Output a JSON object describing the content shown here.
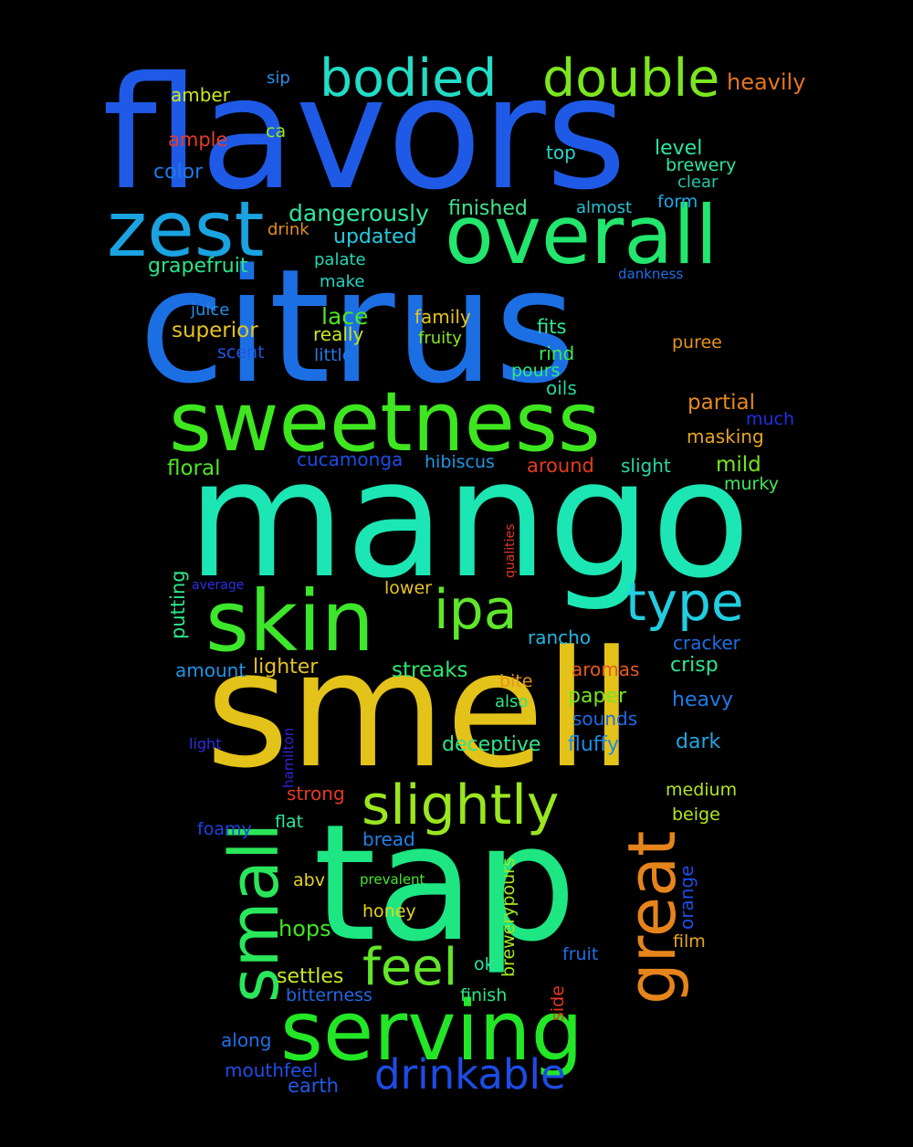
{
  "words": [
    {
      "text": "flavors",
      "color": "#1f5ae6"
    },
    {
      "text": "citrus",
      "color": "#1c6fe3"
    },
    {
      "text": "mango",
      "color": "#1ce6b3"
    },
    {
      "text": "smell",
      "color": "#e3c21a"
    },
    {
      "text": "tap",
      "color": "#1de682"
    },
    {
      "text": "sweetness",
      "color": "#3ee61f"
    },
    {
      "text": "serving",
      "color": "#23e626"
    },
    {
      "text": "skin",
      "color": "#3de62a"
    },
    {
      "text": "overall",
      "color": "#22e66d"
    },
    {
      "text": "zest",
      "color": "#1aa3e0"
    },
    {
      "text": "slightly",
      "color": "#9ae61f"
    },
    {
      "text": "small",
      "color": "#29e65a"
    },
    {
      "text": "great",
      "color": "#e6841c"
    },
    {
      "text": "bodied",
      "color": "#22dcc6"
    },
    {
      "text": "double",
      "color": "#7be61f"
    },
    {
      "text": "type",
      "color": "#22cde0"
    },
    {
      "text": "ipa",
      "color": "#5fe62a"
    },
    {
      "text": "feel",
      "color": "#62e62a"
    },
    {
      "text": "drinkable",
      "color": "#1d4ce6"
    },
    {
      "text": "heavily",
      "color": "#e6741f"
    },
    {
      "text": "dangerously",
      "color": "#2fe6a4"
    },
    {
      "text": "finished",
      "color": "#3ee68a"
    },
    {
      "text": "updated",
      "color": "#23cbe0"
    },
    {
      "text": "grapefruit",
      "color": "#28e688"
    },
    {
      "text": "amber",
      "color": "#cfe61f"
    },
    {
      "text": "sip",
      "color": "#2c8be6"
    },
    {
      "text": "ample",
      "color": "#e63b2c"
    },
    {
      "text": "ca",
      "color": "#9ae61f"
    },
    {
      "text": "color",
      "color": "#1f7ae6"
    },
    {
      "text": "top",
      "color": "#22d9d0"
    },
    {
      "text": "level",
      "color": "#28e6a4"
    },
    {
      "text": "brewery",
      "color": "#2fe6a0"
    },
    {
      "text": "clear",
      "color": "#23c9a7"
    },
    {
      "text": "form",
      "color": "#1fa8e6"
    },
    {
      "text": "almost",
      "color": "#22c2d6"
    },
    {
      "text": "drink",
      "color": "#e38f1c"
    },
    {
      "text": "palate",
      "color": "#22d8b8"
    },
    {
      "text": "dankness",
      "color": "#1f6fe6"
    },
    {
      "text": "make",
      "color": "#22d4c4"
    },
    {
      "text": "juice",
      "color": "#1f90e6"
    },
    {
      "text": "lace",
      "color": "#4ce622"
    },
    {
      "text": "family",
      "color": "#e6c31f"
    },
    {
      "text": "superior",
      "color": "#e6c31f"
    },
    {
      "text": "really",
      "color": "#c7e61f"
    },
    {
      "text": "fruity",
      "color": "#8ae61f"
    },
    {
      "text": "fits",
      "color": "#2ee68f"
    },
    {
      "text": "scent",
      "color": "#1f57e6"
    },
    {
      "text": "little",
      "color": "#1f7ae6"
    },
    {
      "text": "rind",
      "color": "#3ee64b"
    },
    {
      "text": "puree",
      "color": "#e6941f"
    },
    {
      "text": "pours",
      "color": "#2ee684"
    },
    {
      "text": "oils",
      "color": "#22d6a0"
    },
    {
      "text": "partial",
      "color": "#e6891f"
    },
    {
      "text": "much",
      "color": "#1f2fe6"
    },
    {
      "text": "masking",
      "color": "#e6a61f"
    },
    {
      "text": "cucamonga",
      "color": "#1f4de6"
    },
    {
      "text": "hibiscus",
      "color": "#1f96e6"
    },
    {
      "text": "floral",
      "color": "#4ee61f"
    },
    {
      "text": "around",
      "color": "#e63b1f"
    },
    {
      "text": "slight",
      "color": "#23d9a8"
    },
    {
      "text": "mild",
      "color": "#78e61f"
    },
    {
      "text": "murky",
      "color": "#46e65d"
    },
    {
      "text": "qualities",
      "color": "#e3381c"
    },
    {
      "text": "putting",
      "color": "#2ee68a"
    },
    {
      "text": "average",
      "color": "#2b2fe6"
    },
    {
      "text": "lower",
      "color": "#e6c31f"
    },
    {
      "text": "rancho",
      "color": "#22b6e0"
    },
    {
      "text": "cracker",
      "color": "#1f6fe6"
    },
    {
      "text": "amount",
      "color": "#1f94e6"
    },
    {
      "text": "lighter",
      "color": "#e6c31f"
    },
    {
      "text": "streaks",
      "color": "#2ee670"
    },
    {
      "text": "aromas",
      "color": "#e6581f"
    },
    {
      "text": "crisp",
      "color": "#2ee68f"
    },
    {
      "text": "bite",
      "color": "#e6941f"
    },
    {
      "text": "also",
      "color": "#2ee684"
    },
    {
      "text": "paper",
      "color": "#78e61f"
    },
    {
      "text": "heavy",
      "color": "#1f7ae6"
    },
    {
      "text": "sounds",
      "color": "#1f6ae6"
    },
    {
      "text": "deceptive",
      "color": "#2ee68a"
    },
    {
      "text": "fluffy",
      "color": "#1f8ae6"
    },
    {
      "text": "dark",
      "color": "#22a6e0"
    },
    {
      "text": "light",
      "color": "#2b2fe6"
    },
    {
      "text": "hamilton",
      "color": "#2f24d6"
    },
    {
      "text": "strong",
      "color": "#e63b1f"
    },
    {
      "text": "medium",
      "color": "#b3e61f"
    },
    {
      "text": "beige",
      "color": "#b3e61f"
    },
    {
      "text": "flat",
      "color": "#28e6a0"
    },
    {
      "text": "foamy",
      "color": "#1f42e6"
    },
    {
      "text": "bread",
      "color": "#1f82e6"
    },
    {
      "text": "orange",
      "color": "#1f4de6"
    },
    {
      "text": "abv",
      "color": "#e6d31f"
    },
    {
      "text": "prevalent",
      "color": "#46e62a"
    },
    {
      "text": "honey",
      "color": "#e6d31f"
    },
    {
      "text": "brewerypours",
      "color": "#a3e61f"
    },
    {
      "text": "hops",
      "color": "#3ee61f"
    },
    {
      "text": "film",
      "color": "#e6a61f"
    },
    {
      "text": "ok",
      "color": "#28e6a0"
    },
    {
      "text": "fruit",
      "color": "#1f6fe6"
    },
    {
      "text": "settles",
      "color": "#c7e61f"
    },
    {
      "text": "side",
      "color": "#e6381f"
    },
    {
      "text": "bitterness",
      "color": "#1f6ae6"
    },
    {
      "text": "finish",
      "color": "#2ee684"
    },
    {
      "text": "along",
      "color": "#1f70e6"
    },
    {
      "text": "mouthfeel",
      "color": "#1f4de6"
    },
    {
      "text": "earth",
      "color": "#1f5ae6"
    }
  ]
}
